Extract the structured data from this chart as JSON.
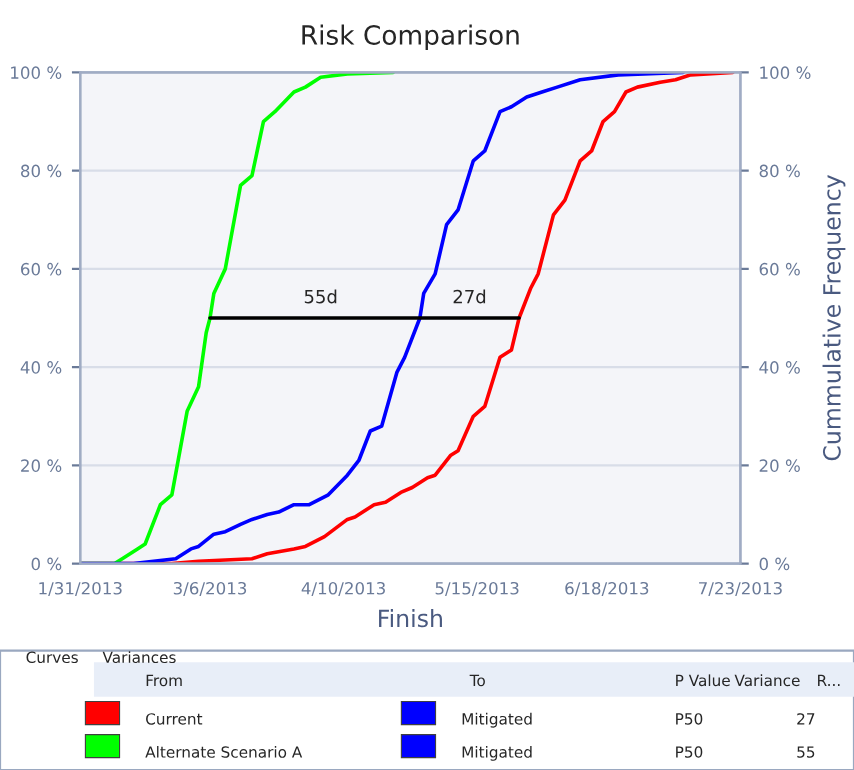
{
  "chart_data": {
    "type": "line",
    "title": "Risk Comparison",
    "xlabel": "Finish",
    "y2label": "Cummulative Frequency",
    "xlim": [
      "2013-01-31",
      "2013-07-23"
    ],
    "xticks": [
      {
        "value": "2013-01-31",
        "label": "1/31/2013"
      },
      {
        "value": "2013-03-06",
        "label": "3/6/2013"
      },
      {
        "value": "2013-04-10",
        "label": "4/10/2013"
      },
      {
        "value": "2013-05-15",
        "label": "5/15/2013"
      },
      {
        "value": "2013-06-18",
        "label": "6/18/2013"
      },
      {
        "value": "2013-07-23",
        "label": "7/23/2013"
      }
    ],
    "ylim": [
      0,
      100
    ],
    "yticks": [
      {
        "value": 0,
        "label": "0 %"
      },
      {
        "value": 20,
        "label": "20 %"
      },
      {
        "value": 40,
        "label": "40 %"
      },
      {
        "value": 60,
        "label": "60 %"
      },
      {
        "value": 80,
        "label": "80 %"
      },
      {
        "value": 100,
        "label": "100 %"
      }
    ],
    "y2lim": [
      0,
      100
    ],
    "y2ticks": [
      {
        "value": 0,
        "label": "0 %"
      },
      {
        "value": 20,
        "label": "20 %"
      },
      {
        "value": 40,
        "label": "40 %"
      },
      {
        "value": 60,
        "label": "60 %"
      },
      {
        "value": 80,
        "label": "80 %"
      },
      {
        "value": 100,
        "label": "100 %"
      }
    ],
    "grid": "y",
    "legend": "bottom",
    "marker": "none",
    "line_style": "solid",
    "series": [
      {
        "name": "Current",
        "color": "#ff0000",
        "x": [
          "2013-01-31",
          "2013-02-24",
          "2013-03-03",
          "2013-03-17",
          "2013-03-21",
          "2013-03-28",
          "2013-03-31",
          "2013-04-05",
          "2013-04-11",
          "2013-04-13",
          "2013-04-18",
          "2013-04-21",
          "2013-04-25",
          "2013-04-28",
          "2013-05-02",
          "2013-05-04",
          "2013-05-08",
          "2013-05-10",
          "2013-05-14",
          "2013-05-17",
          "2013-05-21",
          "2013-05-24",
          "2013-05-26",
          "2013-05-29",
          "2013-05-31",
          "2013-06-04",
          "2013-06-07",
          "2013-06-11",
          "2013-06-14",
          "2013-06-17",
          "2013-06-20",
          "2013-06-23",
          "2013-06-26",
          "2013-07-02",
          "2013-07-06",
          "2013-07-10",
          "2013-07-21"
        ],
        "values": [
          0,
          0,
          0.5,
          1,
          2,
          3,
          3.5,
          5.5,
          9,
          9.5,
          12,
          12.5,
          14.5,
          15.5,
          17.5,
          18,
          22,
          23,
          30,
          32,
          42,
          43.5,
          50,
          56,
          59,
          71,
          74,
          82,
          84,
          90,
          92,
          96,
          97,
          98,
          98.5,
          99.5,
          100
        ]
      },
      {
        "name": "Alternate Scenario A",
        "color": "#00ff00",
        "x": [
          "2013-01-31",
          "2013-02-09",
          "2013-02-11",
          "2013-02-15",
          "2013-02-17",
          "2013-02-21",
          "2013-02-24",
          "2013-02-28",
          "2013-03-03",
          "2013-03-05",
          "2013-03-06",
          "2013-03-07",
          "2013-03-10",
          "2013-03-14",
          "2013-03-17",
          "2013-03-20",
          "2013-03-23",
          "2013-03-28",
          "2013-03-31",
          "2013-04-04",
          "2013-04-11",
          "2013-04-23"
        ],
        "values": [
          0,
          0,
          1,
          3,
          4,
          12,
          14,
          31,
          36,
          47,
          50,
          55,
          60,
          77,
          79,
          90,
          92,
          96,
          97,
          99,
          99.7,
          100
        ]
      },
      {
        "name": "Mitigated",
        "color": "#0000ff",
        "x": [
          "2013-01-31",
          "2013-02-14",
          "2013-02-25",
          "2013-03-01",
          "2013-03-03",
          "2013-03-07",
          "2013-03-10",
          "2013-03-14",
          "2013-03-17",
          "2013-03-21",
          "2013-03-24",
          "2013-03-28",
          "2013-04-01",
          "2013-04-06",
          "2013-04-11",
          "2013-04-14",
          "2013-04-17",
          "2013-04-20",
          "2013-04-24",
          "2013-04-26",
          "2013-04-30",
          "2013-05-01",
          "2013-05-04",
          "2013-05-07",
          "2013-05-10",
          "2013-05-14",
          "2013-05-17",
          "2013-05-21",
          "2013-05-24",
          "2013-05-28",
          "2013-06-01",
          "2013-06-05",
          "2013-06-11",
          "2013-06-21",
          "2013-07-08"
        ],
        "values": [
          0,
          0,
          1,
          3,
          3.5,
          6,
          6.5,
          8,
          9,
          10,
          10.5,
          12,
          12,
          14,
          18,
          21,
          27,
          28,
          39,
          42,
          50,
          55,
          59,
          69,
          72,
          82,
          84,
          92,
          93,
          95,
          96,
          97,
          98.5,
          99.5,
          100
        ]
      },
      {
        "color": "#000000",
        "x": [
          "2013-03-06",
          "2013-05-26"
        ],
        "values": [
          50,
          50
        ]
      }
    ],
    "annotations": [
      {
        "text": "55d",
        "x": "2013-04-04",
        "y": 50
      },
      {
        "text": "27d",
        "x": "2013-05-13",
        "y": 50
      },
      "Curves",
      "Variances",
      "From",
      "To",
      "P Value",
      "Variance",
      "R...",
      "P50",
      "27",
      "P50",
      "55"
    ]
  }
}
